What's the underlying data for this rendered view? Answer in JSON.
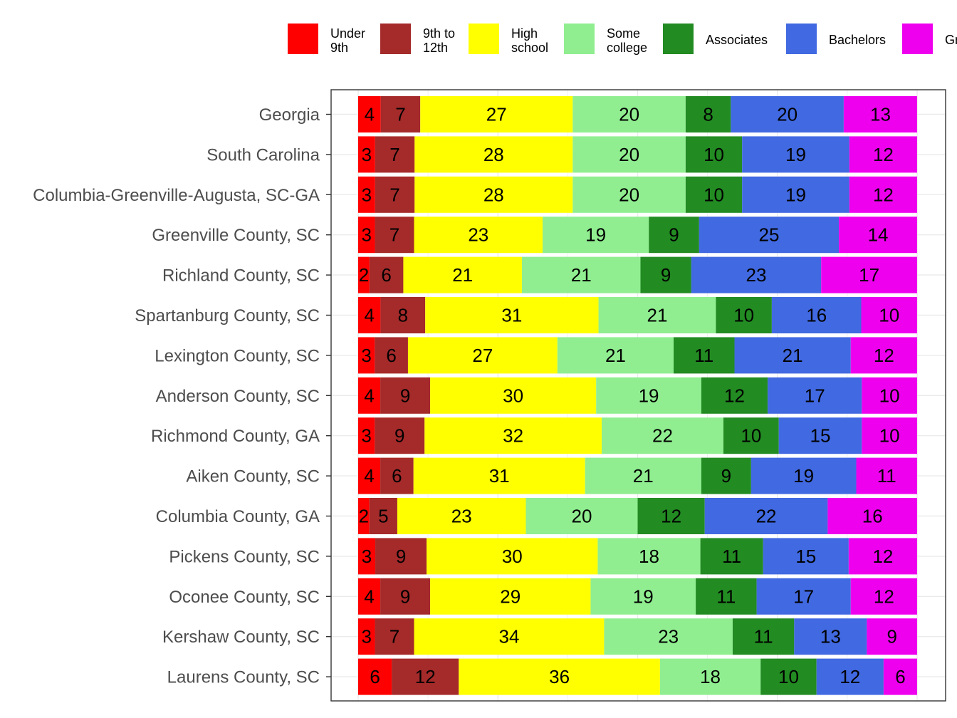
{
  "chart_data": {
    "type": "bar",
    "orientation": "horizontal",
    "stacked": true,
    "normalized": true,
    "legend_position": "top",
    "grid": true,
    "title": "",
    "xlabel": "",
    "ylabel": "",
    "xlim": [
      0,
      100
    ],
    "categories": [
      "Georgia",
      "South Carolina",
      "Columbia-Greenville-Augusta, SC-GA",
      "Greenville County, SC",
      "Richland County, SC",
      "Spartanburg County, SC",
      "Lexington County, SC",
      "Anderson County, SC",
      "Richmond County, GA",
      "Aiken County, SC",
      "Columbia County, GA",
      "Pickens County, SC",
      "Oconee County, SC",
      "Kershaw County, SC",
      "Laurens County, SC"
    ],
    "series": [
      {
        "name": "Under 9th",
        "legend_lines": [
          "Under",
          "9th"
        ],
        "color": "#ff0000",
        "values": [
          4,
          3,
          3,
          3,
          2,
          4,
          3,
          4,
          3,
          4,
          2,
          3,
          4,
          3,
          6
        ]
      },
      {
        "name": "9th to 12th",
        "legend_lines": [
          "9th to",
          "12th"
        ],
        "color": "#a52a2a",
        "values": [
          7,
          7,
          7,
          7,
          6,
          8,
          6,
          9,
          9,
          6,
          5,
          9,
          9,
          7,
          12
        ]
      },
      {
        "name": "High school",
        "legend_lines": [
          "High",
          "school"
        ],
        "color": "#ffff00",
        "values": [
          27,
          28,
          28,
          23,
          21,
          31,
          27,
          30,
          32,
          31,
          23,
          30,
          29,
          34,
          36
        ]
      },
      {
        "name": "Some college",
        "legend_lines": [
          "Some",
          "college"
        ],
        "color": "#90ee90",
        "values": [
          20,
          20,
          20,
          19,
          21,
          21,
          21,
          19,
          22,
          21,
          20,
          18,
          19,
          23,
          18
        ]
      },
      {
        "name": "Associates",
        "legend_lines": [
          "Associates"
        ],
        "color": "#228b22",
        "values": [
          8,
          10,
          10,
          9,
          9,
          10,
          11,
          12,
          10,
          9,
          12,
          11,
          11,
          11,
          10
        ]
      },
      {
        "name": "Bachelors",
        "legend_lines": [
          "Bachelors"
        ],
        "color": "#4169e1",
        "values": [
          20,
          19,
          19,
          25,
          23,
          16,
          21,
          17,
          15,
          19,
          22,
          15,
          17,
          13,
          12
        ]
      },
      {
        "name": "Graduate",
        "legend_lines": [
          "Gr"
        ],
        "color": "#ee00ee",
        "values": [
          13,
          12,
          12,
          14,
          17,
          10,
          12,
          10,
          10,
          11,
          16,
          12,
          12,
          9,
          6
        ]
      }
    ]
  }
}
